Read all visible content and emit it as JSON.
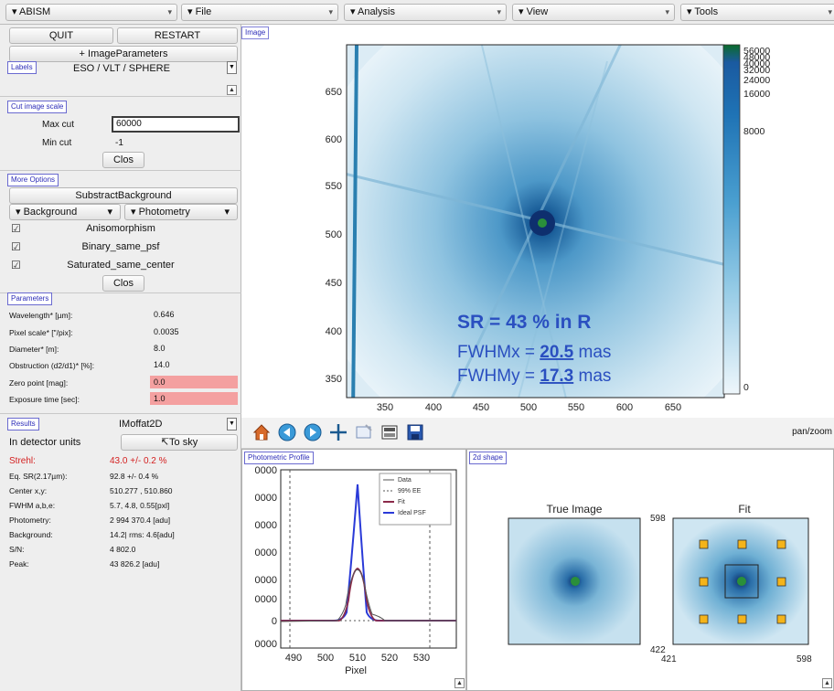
{
  "menus": [
    {
      "label": "ABISM"
    },
    {
      "label": "File"
    },
    {
      "label": "Analysis"
    },
    {
      "label": "View"
    },
    {
      "label": "Tools"
    }
  ],
  "left": {
    "quit_label": "QUIT",
    "restart_label": "RESTART",
    "image_parameters_label": "+ ImageParameters",
    "labels_tag": "Labels",
    "instrument_value": "ESO / VLT / SPHERE",
    "cut_tag": "Cut image scale",
    "max_cut_label": "Max cut",
    "max_cut_value": "60000",
    "min_cut_label": "Min cut",
    "min_cut_value": "-1",
    "close_label": "Clos",
    "more_options_tag": "More Options",
    "subtract_bg_label": "SubstractBackground",
    "background_label": "Background",
    "photometry_label": "Photometry",
    "checks": [
      {
        "label": "Anisomorphism"
      },
      {
        "label": "Binary_same_psf"
      },
      {
        "label": "Saturated_same_center"
      }
    ],
    "close2_label": "Clos",
    "parameters_tag": "Parameters",
    "params": [
      {
        "label": "Wavelength* [µm]:",
        "value": "0.646"
      },
      {
        "label": "Pixel scale* [\"/pix]:",
        "value": "0.0035"
      },
      {
        "label": "Diameter* [m]:",
        "value": "8.0"
      },
      {
        "label": "Obstruction (d2/d1)* [%]:",
        "value": "14.0"
      },
      {
        "label": "Zero point [mag]:",
        "value": "0.0"
      },
      {
        "label": "Exposure time [sec]:",
        "value": "1.0"
      }
    ],
    "results_tag": "Results",
    "fit_model": "IMoffat2D",
    "units_label": "In detector units",
    "to_sky_label": "↸To sky",
    "results": [
      {
        "label": "Strehl:",
        "value": "43.0 +/- 0.2 %",
        "color": "#d42020"
      },
      {
        "label": "Eq. SR(2.17µm):",
        "value": "92.8 +/- 0.4 %"
      },
      {
        "label": "Center x,y:",
        "value": "510.277 , 510.860"
      },
      {
        "label": "FWHM a,b,e:",
        "value": "5.7, 4.8, 0.55[pxl]"
      },
      {
        "label": "Photometry:",
        "value": "2 994 370.4 [adu]"
      },
      {
        "label": "Background:",
        "value": "14.2| rms: 4.6[adu]"
      },
      {
        "label": "S/N:",
        "value": "4 802.0"
      },
      {
        "label": "Peak:",
        "value": "43 826.2 [adu]"
      }
    ]
  },
  "image": {
    "tag": "Image",
    "y_ticks": [
      "650",
      "600",
      "550",
      "500",
      "450",
      "400",
      "350"
    ],
    "x_ticks": [
      "350",
      "400",
      "450",
      "500",
      "550",
      "600",
      "650"
    ],
    "sr_text": "SR = 43 % in R",
    "fwhmx_label": "FWHMx = ",
    "fwhmx_value": "20.5",
    "fwhmy_label": "FWHMy = ",
    "fwhmy_value": "17.3",
    "unit": " mas",
    "colorbar_ticks": [
      "56000",
      "48000",
      "40000",
      "32000",
      "24000",
      "16000",
      "8000",
      "0"
    ]
  },
  "toolbar": {
    "mode_text": "pan/zoom"
  },
  "profile": {
    "tag": "Photometric Profile",
    "y_ticks": [
      "0000",
      "0000",
      "0000",
      "0000",
      "0000",
      "0000",
      "0",
      "0000"
    ],
    "x_ticks": [
      "490",
      "500",
      "510",
      "520",
      "530"
    ],
    "xlabel": "Pixel",
    "legend": [
      {
        "label": "Data",
        "color": "#555555",
        "dash": false
      },
      {
        "label": "99% EE",
        "color": "#555555",
        "dash": true
      },
      {
        "label": "Fit",
        "color": "#8b2a4a",
        "dash": false
      },
      {
        "label": "Ideal PSF",
        "color": "#2a3ad8",
        "dash": false
      }
    ]
  },
  "shape": {
    "tag": "2d shape",
    "true_title": "True Image",
    "fit_title": "Fit",
    "ytop": "598",
    "ybottom": "422",
    "xleft": "421",
    "xright": "598"
  }
}
